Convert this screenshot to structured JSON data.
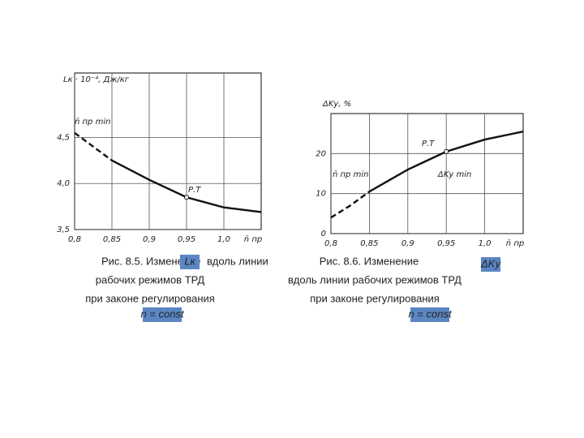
{
  "chart_data": [
    {
      "type": "line",
      "y_label": "Lк · 10⁻⁴, Дж/кг",
      "x_label": "n̄ пр",
      "annotations": [
        "n̄ пр min",
        "Р.Т"
      ],
      "caption": [
        "Рис. 8.5. Изменение",
        "Lк",
        "вдоль линии",
        "рабочих режимов ТРД",
        "при законе регулирования",
        "n = const"
      ],
      "xlim": [
        0.8,
        1.05
      ],
      "ylim": [
        3.5,
        5.2
      ],
      "xticks": [
        {
          "value": 0.8,
          "label": "0,8"
        },
        {
          "value": 0.85,
          "label": "0,85"
        },
        {
          "value": 0.9,
          "label": "0,9"
        },
        {
          "value": 0.95,
          "label": "0,95"
        },
        {
          "value": 1.0,
          "label": "1,0"
        }
      ],
      "yticks": [
        {
          "value": 3.5,
          "label": "3,5"
        },
        {
          "value": 4.0,
          "label": "4,0"
        },
        {
          "value": 4.5,
          "label": "4,5"
        }
      ],
      "grid": true,
      "series": [
        {
          "color": "#111111",
          "dashed": true,
          "x": [
            0.8,
            0.825,
            0.85
          ],
          "values": [
            4.55,
            4.4,
            4.25
          ]
        },
        {
          "color": "#111111",
          "dashed": false,
          "x": [
            0.85,
            0.9,
            0.95,
            1.0,
            1.05
          ],
          "values": [
            4.25,
            4.04,
            3.85,
            3.74,
            3.69
          ]
        }
      ]
    },
    {
      "type": "line",
      "y_label": "ΔKу, %",
      "x_label": "n̄ пр",
      "annotations": [
        "n̄ пр min",
        "Р.Т",
        "ΔKу min"
      ],
      "caption": [
        "Рис. 8.6. Изменение",
        "ΔKу",
        "вдоль линии рабочих режимов ТРД",
        "при законе регулирования",
        "n = const"
      ],
      "xlim": [
        0.8,
        1.05
      ],
      "ylim": [
        0,
        30
      ],
      "xticks": [
        {
          "value": 0.8,
          "label": "0,8"
        },
        {
          "value": 0.85,
          "label": "0,85"
        },
        {
          "value": 0.9,
          "label": "0,9"
        },
        {
          "value": 0.95,
          "label": "0,95"
        },
        {
          "value": 1.0,
          "label": "1,0"
        }
      ],
      "yticks": [
        0,
        10,
        20
      ],
      "grid": true,
      "series": [
        {
          "color": "#111111",
          "dashed": true,
          "x": [
            0.8,
            0.825,
            0.85
          ],
          "values": [
            4,
            7,
            10.5
          ]
        },
        {
          "color": "#111111",
          "dashed": false,
          "x": [
            0.85,
            0.9,
            0.95,
            1.0,
            1.05
          ],
          "values": [
            10.5,
            16,
            20.5,
            23.5,
            25.5
          ]
        }
      ]
    }
  ]
}
